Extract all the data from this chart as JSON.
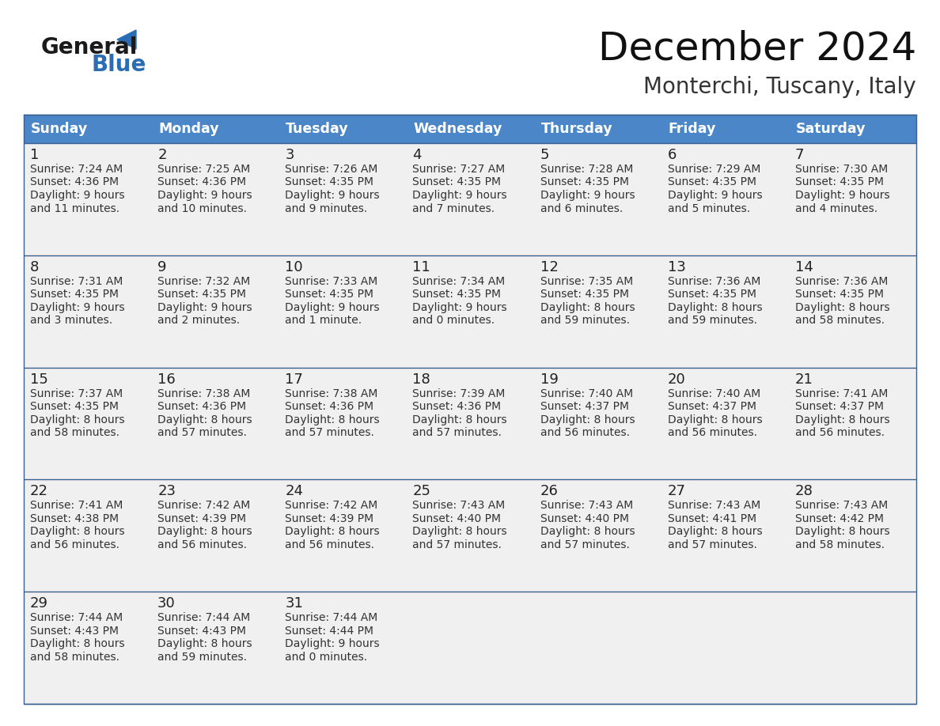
{
  "title": "December 2024",
  "subtitle": "Monterchi, Tuscany, Italy",
  "days_of_week": [
    "Sunday",
    "Monday",
    "Tuesday",
    "Wednesday",
    "Thursday",
    "Friday",
    "Saturday"
  ],
  "header_bg": "#4a86c8",
  "header_text": "#ffffff",
  "cell_bg": "#f0f0f0",
  "border_color": "#3a6090",
  "text_color": "#333333",
  "day_num_color": "#222222",
  "logo_general_color": "#1a1a1a",
  "logo_blue_color": "#2a6db5",
  "calendar_data": [
    [
      {
        "day": 1,
        "sunrise": "7:24 AM",
        "sunset": "4:36 PM",
        "daylight_l1": "Daylight: 9 hours",
        "daylight_l2": "and 11 minutes."
      },
      {
        "day": 2,
        "sunrise": "7:25 AM",
        "sunset": "4:36 PM",
        "daylight_l1": "Daylight: 9 hours",
        "daylight_l2": "and 10 minutes."
      },
      {
        "day": 3,
        "sunrise": "7:26 AM",
        "sunset": "4:35 PM",
        "daylight_l1": "Daylight: 9 hours",
        "daylight_l2": "and 9 minutes."
      },
      {
        "day": 4,
        "sunrise": "7:27 AM",
        "sunset": "4:35 PM",
        "daylight_l1": "Daylight: 9 hours",
        "daylight_l2": "and 7 minutes."
      },
      {
        "day": 5,
        "sunrise": "7:28 AM",
        "sunset": "4:35 PM",
        "daylight_l1": "Daylight: 9 hours",
        "daylight_l2": "and 6 minutes."
      },
      {
        "day": 6,
        "sunrise": "7:29 AM",
        "sunset": "4:35 PM",
        "daylight_l1": "Daylight: 9 hours",
        "daylight_l2": "and 5 minutes."
      },
      {
        "day": 7,
        "sunrise": "7:30 AM",
        "sunset": "4:35 PM",
        "daylight_l1": "Daylight: 9 hours",
        "daylight_l2": "and 4 minutes."
      }
    ],
    [
      {
        "day": 8,
        "sunrise": "7:31 AM",
        "sunset": "4:35 PM",
        "daylight_l1": "Daylight: 9 hours",
        "daylight_l2": "and 3 minutes."
      },
      {
        "day": 9,
        "sunrise": "7:32 AM",
        "sunset": "4:35 PM",
        "daylight_l1": "Daylight: 9 hours",
        "daylight_l2": "and 2 minutes."
      },
      {
        "day": 10,
        "sunrise": "7:33 AM",
        "sunset": "4:35 PM",
        "daylight_l1": "Daylight: 9 hours",
        "daylight_l2": "and 1 minute."
      },
      {
        "day": 11,
        "sunrise": "7:34 AM",
        "sunset": "4:35 PM",
        "daylight_l1": "Daylight: 9 hours",
        "daylight_l2": "and 0 minutes."
      },
      {
        "day": 12,
        "sunrise": "7:35 AM",
        "sunset": "4:35 PM",
        "daylight_l1": "Daylight: 8 hours",
        "daylight_l2": "and 59 minutes."
      },
      {
        "day": 13,
        "sunrise": "7:36 AM",
        "sunset": "4:35 PM",
        "daylight_l1": "Daylight: 8 hours",
        "daylight_l2": "and 59 minutes."
      },
      {
        "day": 14,
        "sunrise": "7:36 AM",
        "sunset": "4:35 PM",
        "daylight_l1": "Daylight: 8 hours",
        "daylight_l2": "and 58 minutes."
      }
    ],
    [
      {
        "day": 15,
        "sunrise": "7:37 AM",
        "sunset": "4:35 PM",
        "daylight_l1": "Daylight: 8 hours",
        "daylight_l2": "and 58 minutes."
      },
      {
        "day": 16,
        "sunrise": "7:38 AM",
        "sunset": "4:36 PM",
        "daylight_l1": "Daylight: 8 hours",
        "daylight_l2": "and 57 minutes."
      },
      {
        "day": 17,
        "sunrise": "7:38 AM",
        "sunset": "4:36 PM",
        "daylight_l1": "Daylight: 8 hours",
        "daylight_l2": "and 57 minutes."
      },
      {
        "day": 18,
        "sunrise": "7:39 AM",
        "sunset": "4:36 PM",
        "daylight_l1": "Daylight: 8 hours",
        "daylight_l2": "and 57 minutes."
      },
      {
        "day": 19,
        "sunrise": "7:40 AM",
        "sunset": "4:37 PM",
        "daylight_l1": "Daylight: 8 hours",
        "daylight_l2": "and 56 minutes."
      },
      {
        "day": 20,
        "sunrise": "7:40 AM",
        "sunset": "4:37 PM",
        "daylight_l1": "Daylight: 8 hours",
        "daylight_l2": "and 56 minutes."
      },
      {
        "day": 21,
        "sunrise": "7:41 AM",
        "sunset": "4:37 PM",
        "daylight_l1": "Daylight: 8 hours",
        "daylight_l2": "and 56 minutes."
      }
    ],
    [
      {
        "day": 22,
        "sunrise": "7:41 AM",
        "sunset": "4:38 PM",
        "daylight_l1": "Daylight: 8 hours",
        "daylight_l2": "and 56 minutes."
      },
      {
        "day": 23,
        "sunrise": "7:42 AM",
        "sunset": "4:39 PM",
        "daylight_l1": "Daylight: 8 hours",
        "daylight_l2": "and 56 minutes."
      },
      {
        "day": 24,
        "sunrise": "7:42 AM",
        "sunset": "4:39 PM",
        "daylight_l1": "Daylight: 8 hours",
        "daylight_l2": "and 56 minutes."
      },
      {
        "day": 25,
        "sunrise": "7:43 AM",
        "sunset": "4:40 PM",
        "daylight_l1": "Daylight: 8 hours",
        "daylight_l2": "and 57 minutes."
      },
      {
        "day": 26,
        "sunrise": "7:43 AM",
        "sunset": "4:40 PM",
        "daylight_l1": "Daylight: 8 hours",
        "daylight_l2": "and 57 minutes."
      },
      {
        "day": 27,
        "sunrise": "7:43 AM",
        "sunset": "4:41 PM",
        "daylight_l1": "Daylight: 8 hours",
        "daylight_l2": "and 57 minutes."
      },
      {
        "day": 28,
        "sunrise": "7:43 AM",
        "sunset": "4:42 PM",
        "daylight_l1": "Daylight: 8 hours",
        "daylight_l2": "and 58 minutes."
      }
    ],
    [
      {
        "day": 29,
        "sunrise": "7:44 AM",
        "sunset": "4:43 PM",
        "daylight_l1": "Daylight: 8 hours",
        "daylight_l2": "and 58 minutes."
      },
      {
        "day": 30,
        "sunrise": "7:44 AM",
        "sunset": "4:43 PM",
        "daylight_l1": "Daylight: 8 hours",
        "daylight_l2": "and 59 minutes."
      },
      {
        "day": 31,
        "sunrise": "7:44 AM",
        "sunset": "4:44 PM",
        "daylight_l1": "Daylight: 9 hours",
        "daylight_l2": "and 0 minutes."
      },
      null,
      null,
      null,
      null
    ]
  ],
  "figsize": [
    11.88,
    9.18
  ],
  "dpi": 100
}
